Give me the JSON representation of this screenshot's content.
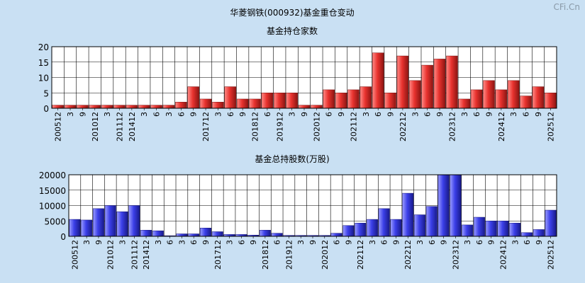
{
  "title": "华菱钢铁(000932)基金重仓变动",
  "watermark": "CFi.Cn",
  "chart_data": [
    {
      "type": "bar",
      "title": "基金持仓家数",
      "color": "#e8322e",
      "ylim": [
        0,
        20
      ],
      "yticks": [
        0,
        5,
        10,
        15,
        20
      ],
      "categories": [
        "200512",
        "3",
        "9",
        "201012",
        "3",
        "201112",
        "201412",
        "3",
        "6",
        "3",
        "6",
        "9",
        "201712",
        "3",
        "6",
        "9",
        "201812",
        "6",
        "201912",
        "3",
        "9",
        "202012",
        "6",
        "9",
        "202112",
        "3",
        "6",
        "9",
        "202212",
        "3",
        "6",
        "9",
        "202312",
        "3",
        "6",
        "9",
        "202412",
        "3",
        "6",
        "9",
        "202512"
      ],
      "values": [
        1,
        1,
        1,
        1,
        1,
        1,
        1,
        1,
        1,
        1,
        2,
        7,
        3,
        2,
        7,
        3,
        3,
        5,
        5,
        5,
        1,
        1,
        6,
        5,
        6,
        7,
        18,
        5,
        17,
        9,
        14,
        16,
        17,
        3,
        6,
        9,
        6,
        9,
        4,
        7,
        5
      ]
    },
    {
      "type": "bar",
      "title": "基金总持股数(万股)",
      "color": "#3b3fe8",
      "ylim": [
        0,
        20000
      ],
      "yticks": [
        0,
        5000,
        10000,
        15000,
        20000
      ],
      "categories": [
        "200512",
        "3",
        "9",
        "201012",
        "3",
        "201112",
        "201412",
        "3",
        "6",
        "3",
        "6",
        "9",
        "201712",
        "3",
        "6",
        "9",
        "201812",
        "6",
        "201912",
        "3",
        "9",
        "202012",
        "6",
        "9",
        "202112",
        "3",
        "6",
        "9",
        "202212",
        "3",
        "6",
        "9",
        "202312",
        "3",
        "6",
        "9",
        "202412",
        "3",
        "6",
        "9",
        "202512"
      ],
      "values": [
        5500,
        5300,
        9000,
        10000,
        8000,
        10000,
        2000,
        1800,
        200,
        800,
        800,
        2700,
        1500,
        600,
        600,
        400,
        2000,
        1000,
        300,
        300,
        300,
        300,
        1000,
        3500,
        4300,
        5500,
        9000,
        5500,
        14000,
        7000,
        9700,
        20000,
        20000,
        3700,
        6200,
        5000,
        5000,
        4300,
        1200,
        2200,
        8500
      ]
    }
  ]
}
